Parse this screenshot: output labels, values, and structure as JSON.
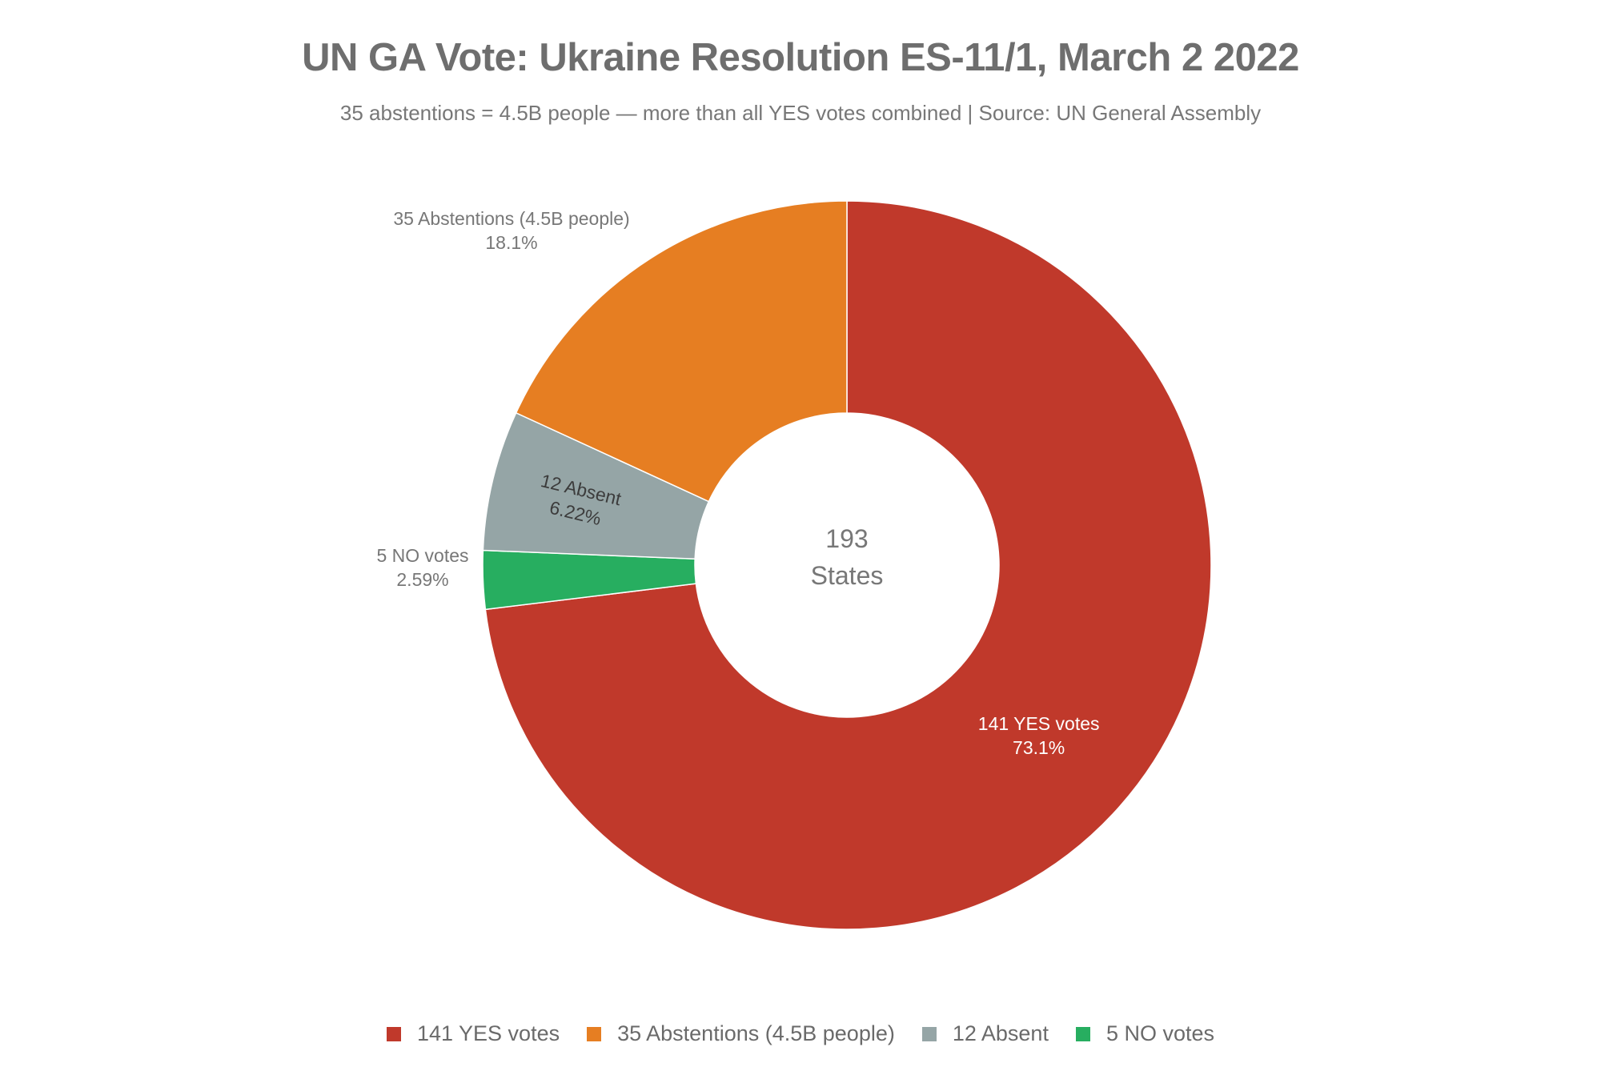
{
  "chart_data": {
    "type": "pie",
    "title": "UN GA Vote: Ukraine Resolution ES-11/1, March 2 2022",
    "subtitle": "35 abstentions = 4.5B people — more than all YES votes combined | Source: UN General Assembly",
    "hole": true,
    "center_text": {
      "line1": "193",
      "line2": "States"
    },
    "legend_position": "bottom",
    "series": [
      {
        "name": "141 YES votes",
        "value": 141,
        "percent_label": "73.1%",
        "color": "#c0392b"
      },
      {
        "name": "5 NO votes",
        "value": 5,
        "percent_label": "2.59%",
        "color": "#27ae60"
      },
      {
        "name": "12 Absent",
        "value": 12,
        "percent_label": "6.22%",
        "color": "#95a5a6"
      },
      {
        "name": "35 Abstentions (4.5B people)",
        "value": 35,
        "percent_label": "18.1%",
        "color": "#e67e22"
      }
    ],
    "legend_order": [
      "141 YES votes",
      "35 Abstentions (4.5B people)",
      "12 Absent",
      "5 NO votes"
    ]
  }
}
